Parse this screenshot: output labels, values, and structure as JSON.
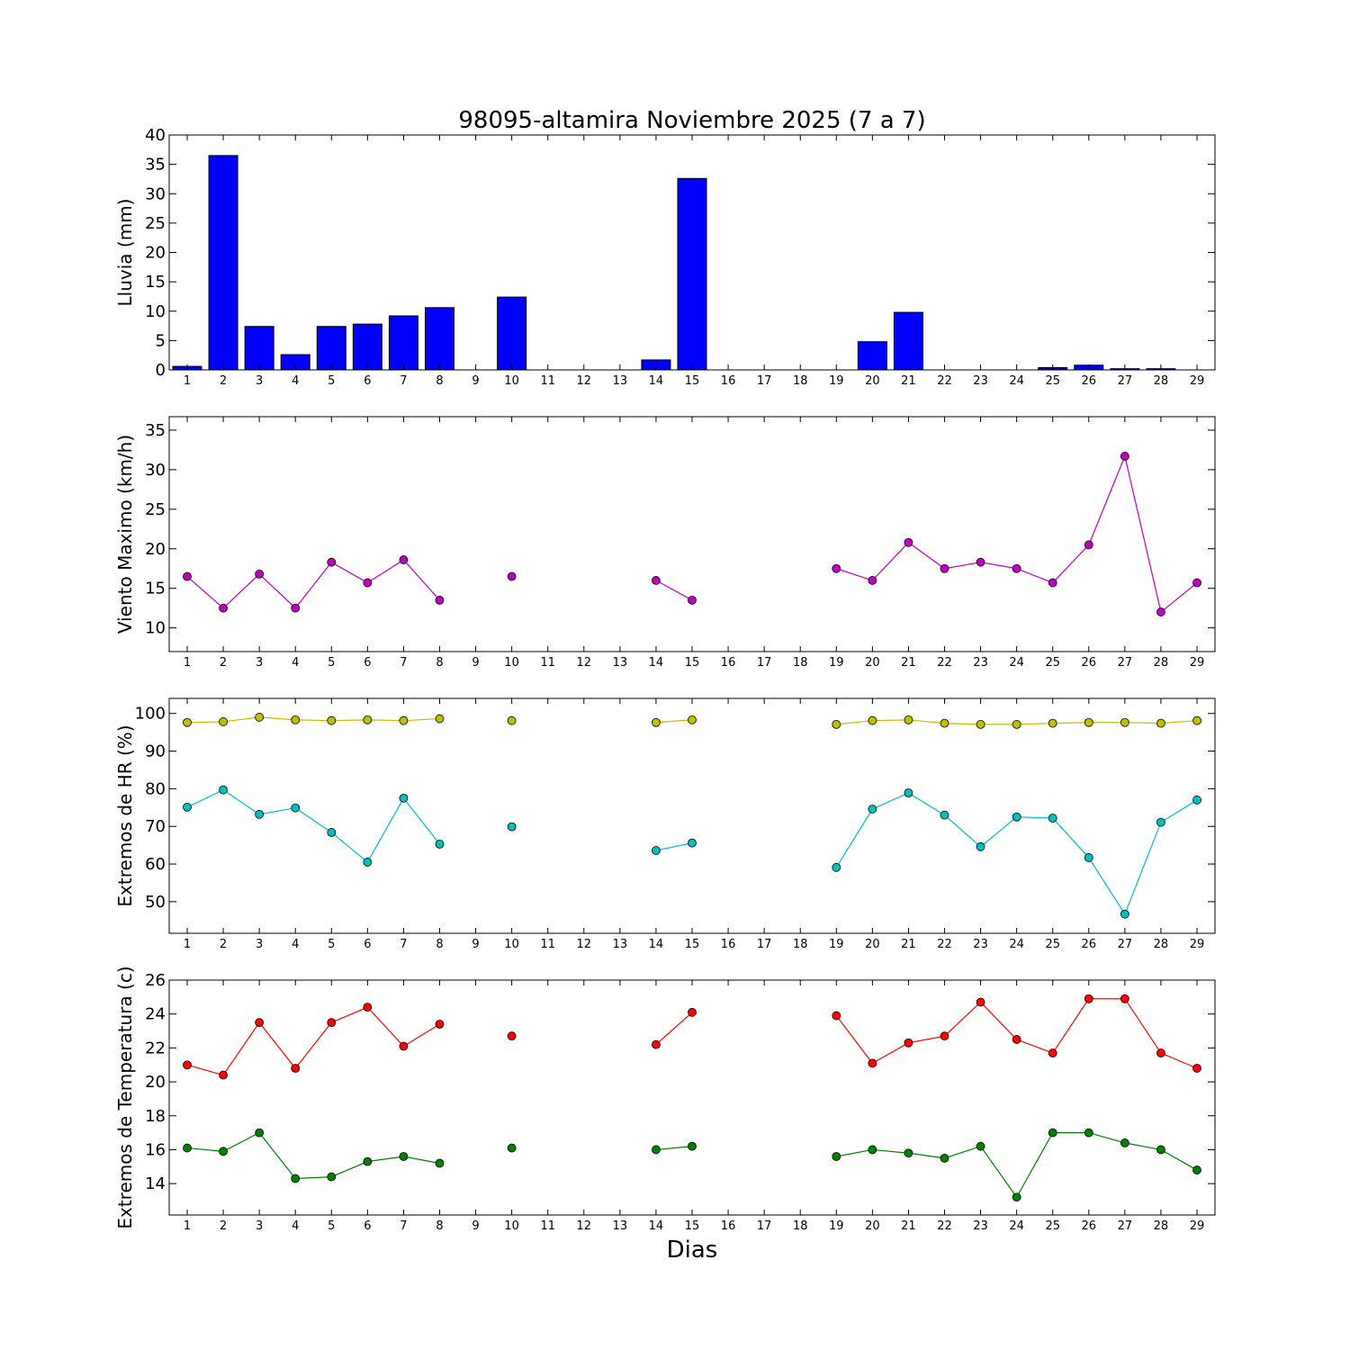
{
  "chart_data": [
    {
      "type": "bar",
      "title": "98095-altamira Noviembre 2025  (7 a 7)",
      "ylabel": "Lluvia (mm)",
      "ylim": [
        0,
        40
      ],
      "yticks": [
        0,
        5,
        10,
        15,
        20,
        25,
        30,
        35,
        40
      ],
      "x": [
        1,
        2,
        3,
        4,
        5,
        6,
        7,
        8,
        9,
        10,
        11,
        12,
        13,
        14,
        15,
        16,
        17,
        18,
        19,
        20,
        21,
        22,
        23,
        24,
        25,
        26,
        27,
        28,
        29
      ],
      "values": [
        0.6,
        36.5,
        7.4,
        2.6,
        7.4,
        7.8,
        9.2,
        10.6,
        0,
        12.4,
        0,
        0,
        0,
        1.7,
        32.6,
        0,
        0,
        0,
        0,
        4.8,
        9.8,
        0,
        0,
        0,
        0.4,
        0.8,
        0.2,
        0.2,
        0
      ],
      "color": "#0000ff"
    },
    {
      "type": "line",
      "ylabel": "Viento Maximo (km/h)",
      "ylim": [
        7,
        36.7
      ],
      "yticks": [
        10,
        15,
        20,
        25,
        30,
        35
      ],
      "x": [
        1,
        2,
        3,
        4,
        5,
        6,
        7,
        8,
        9,
        10,
        11,
        12,
        13,
        14,
        15,
        16,
        17,
        18,
        19,
        20,
        21,
        22,
        23,
        24,
        25,
        26,
        27,
        28,
        29
      ],
      "series": [
        {
          "name": "Viento Maximo",
          "color": "#bf00bf",
          "values": [
            16.5,
            12.5,
            16.8,
            12.5,
            18.3,
            15.7,
            18.6,
            13.5,
            null,
            16.5,
            null,
            null,
            null,
            16.0,
            13.5,
            null,
            null,
            null,
            17.5,
            16.0,
            20.8,
            17.5,
            18.3,
            17.5,
            15.7,
            20.5,
            31.7,
            12.0,
            15.7
          ]
        }
      ]
    },
    {
      "type": "line",
      "ylabel": "Extremos de HR (%)",
      "ylim": [
        41.6,
        104
      ],
      "yticks": [
        50,
        60,
        70,
        80,
        90,
        100
      ],
      "x": [
        1,
        2,
        3,
        4,
        5,
        6,
        7,
        8,
        9,
        10,
        11,
        12,
        13,
        14,
        15,
        16,
        17,
        18,
        19,
        20,
        21,
        22,
        23,
        24,
        25,
        26,
        27,
        28,
        29
      ],
      "series": [
        {
          "name": "HR max",
          "color": "#bfbf00",
          "values": [
            97.6,
            97.8,
            99.0,
            98.3,
            98.1,
            98.3,
            98.1,
            98.6,
            null,
            98.1,
            null,
            null,
            null,
            97.6,
            98.3,
            null,
            null,
            null,
            97.1,
            98.1,
            98.3,
            97.4,
            97.1,
            97.1,
            97.4,
            97.6,
            97.6,
            97.4,
            98.1
          ]
        },
        {
          "name": "HR min",
          "color": "#00bfbf",
          "values": [
            75.1,
            79.7,
            73.2,
            74.9,
            68.4,
            60.5,
            77.5,
            65.3,
            null,
            69.9,
            null,
            null,
            null,
            63.6,
            65.6,
            null,
            null,
            null,
            59.1,
            74.6,
            78.9,
            73.0,
            64.6,
            72.5,
            72.2,
            61.7,
            46.7,
            71.1,
            77.0
          ]
        }
      ]
    },
    {
      "type": "line",
      "ylabel": "Extremos de Temperatura (c)",
      "xlabel": "Dias",
      "ylim": [
        12.15,
        26
      ],
      "yticks": [
        14,
        16,
        18,
        20,
        22,
        24,
        26
      ],
      "x": [
        1,
        2,
        3,
        4,
        5,
        6,
        7,
        8,
        9,
        10,
        11,
        12,
        13,
        14,
        15,
        16,
        17,
        18,
        19,
        20,
        21,
        22,
        23,
        24,
        25,
        26,
        27,
        28,
        29
      ],
      "series": [
        {
          "name": "Tmax",
          "color": "#ff0000",
          "values": [
            21.0,
            20.4,
            23.5,
            20.8,
            23.5,
            24.4,
            22.1,
            23.4,
            null,
            22.7,
            null,
            null,
            null,
            22.2,
            24.1,
            null,
            null,
            null,
            23.9,
            21.1,
            22.3,
            22.7,
            24.7,
            22.5,
            21.7,
            24.9,
            24.9,
            21.7,
            20.8
          ]
        },
        {
          "name": "Tmin",
          "color": "#008000",
          "values": [
            16.1,
            15.9,
            17.0,
            14.3,
            14.4,
            15.3,
            15.6,
            15.2,
            null,
            16.1,
            null,
            null,
            null,
            16.0,
            16.2,
            null,
            null,
            null,
            15.6,
            16.0,
            15.8,
            15.5,
            16.2,
            13.2,
            17.0,
            17.0,
            16.4,
            16.0,
            14.8
          ]
        }
      ]
    }
  ]
}
